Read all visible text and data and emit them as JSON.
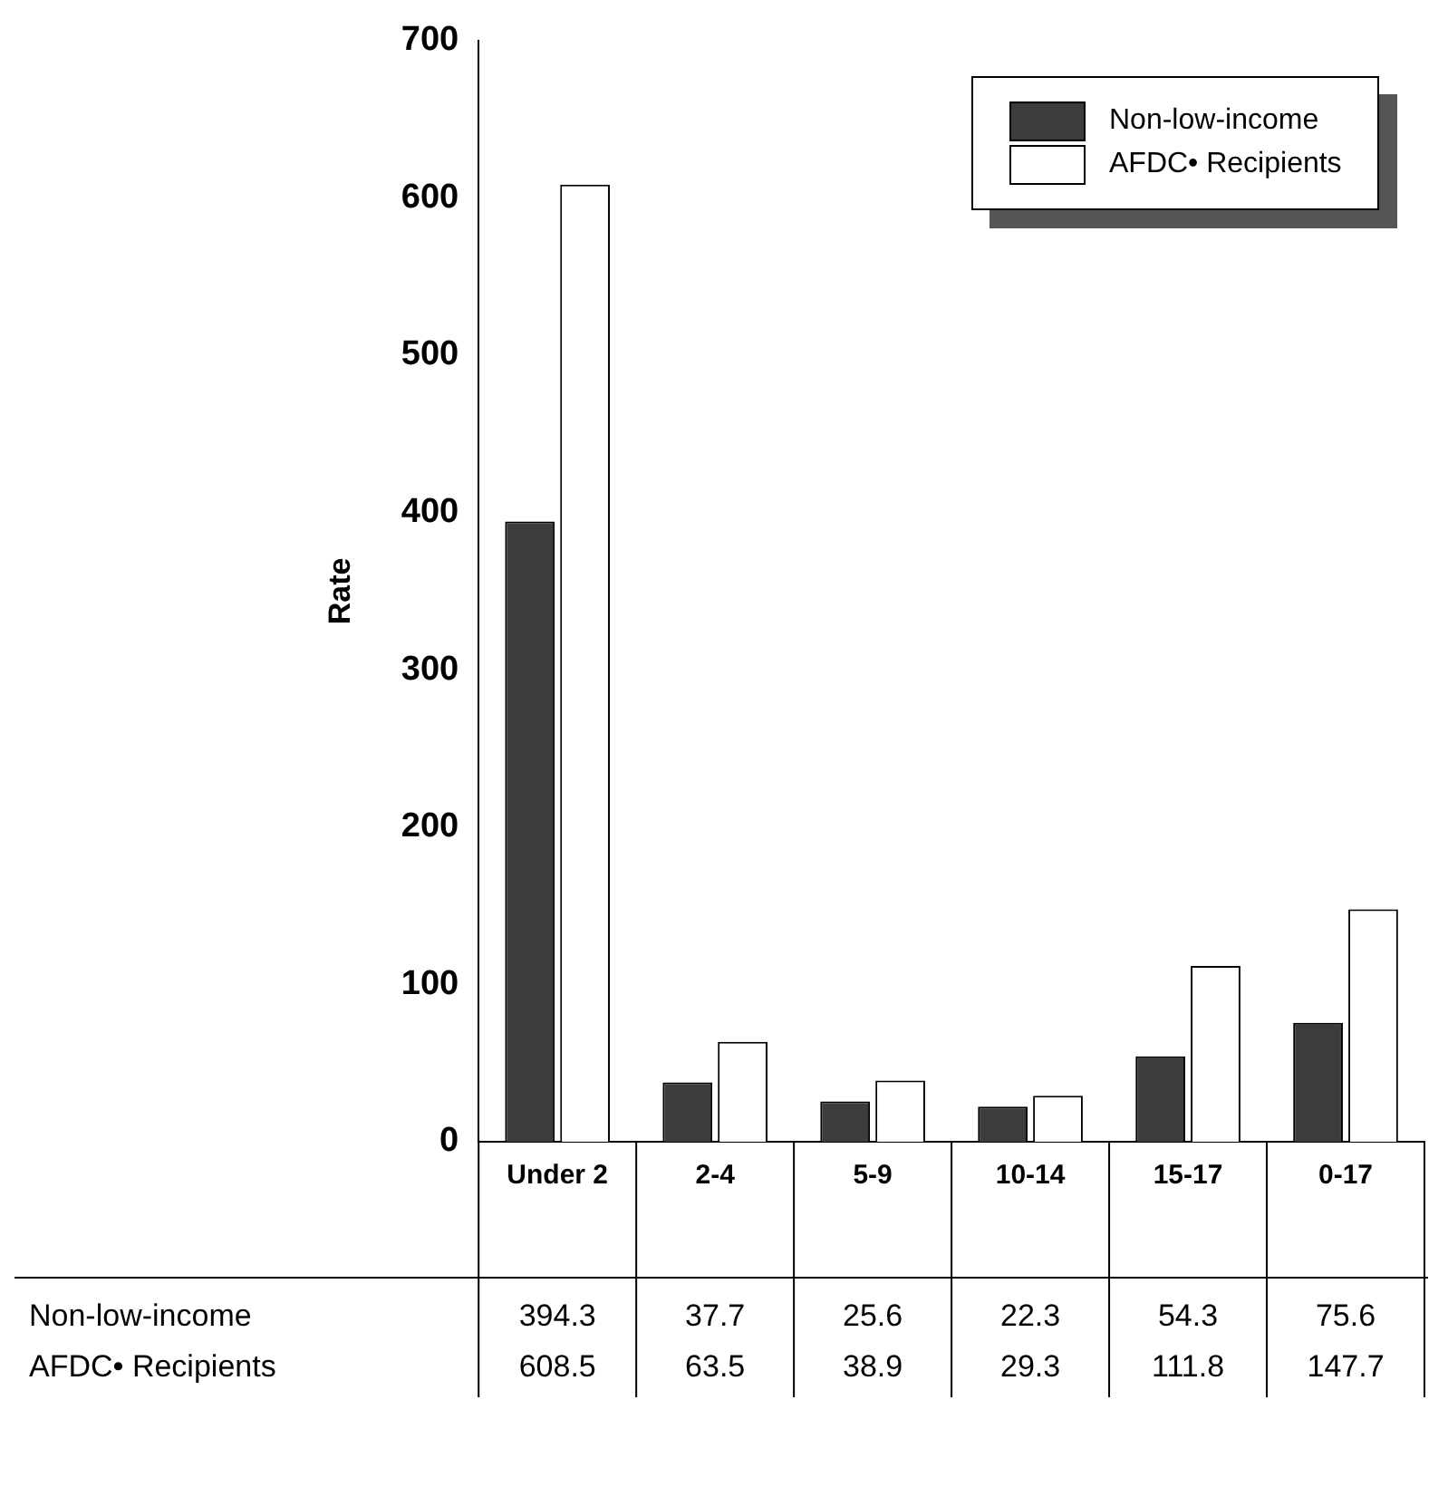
{
  "chart_data": {
    "type": "bar",
    "ylabel": "Rate",
    "categories": [
      "Under 2",
      "2-4",
      "5-9",
      "10-14",
      "15-17",
      "0-17"
    ],
    "series": [
      {
        "name": "Non-low-income",
        "color": "#3c3c3c",
        "values": [
          394.3,
          37.7,
          25.6,
          22.3,
          54.3,
          75.6
        ]
      },
      {
        "name": "AFDC• Recipients",
        "color": "#ffffff",
        "values": [
          608.5,
          63.5,
          38.9,
          29.3,
          111.8,
          147.7
        ]
      }
    ],
    "ylim": [
      0,
      700
    ],
    "yticks": [
      0,
      100,
      200,
      300,
      400,
      500,
      600,
      700
    ],
    "grid": false,
    "legend": "top right",
    "data_labels": true
  }
}
